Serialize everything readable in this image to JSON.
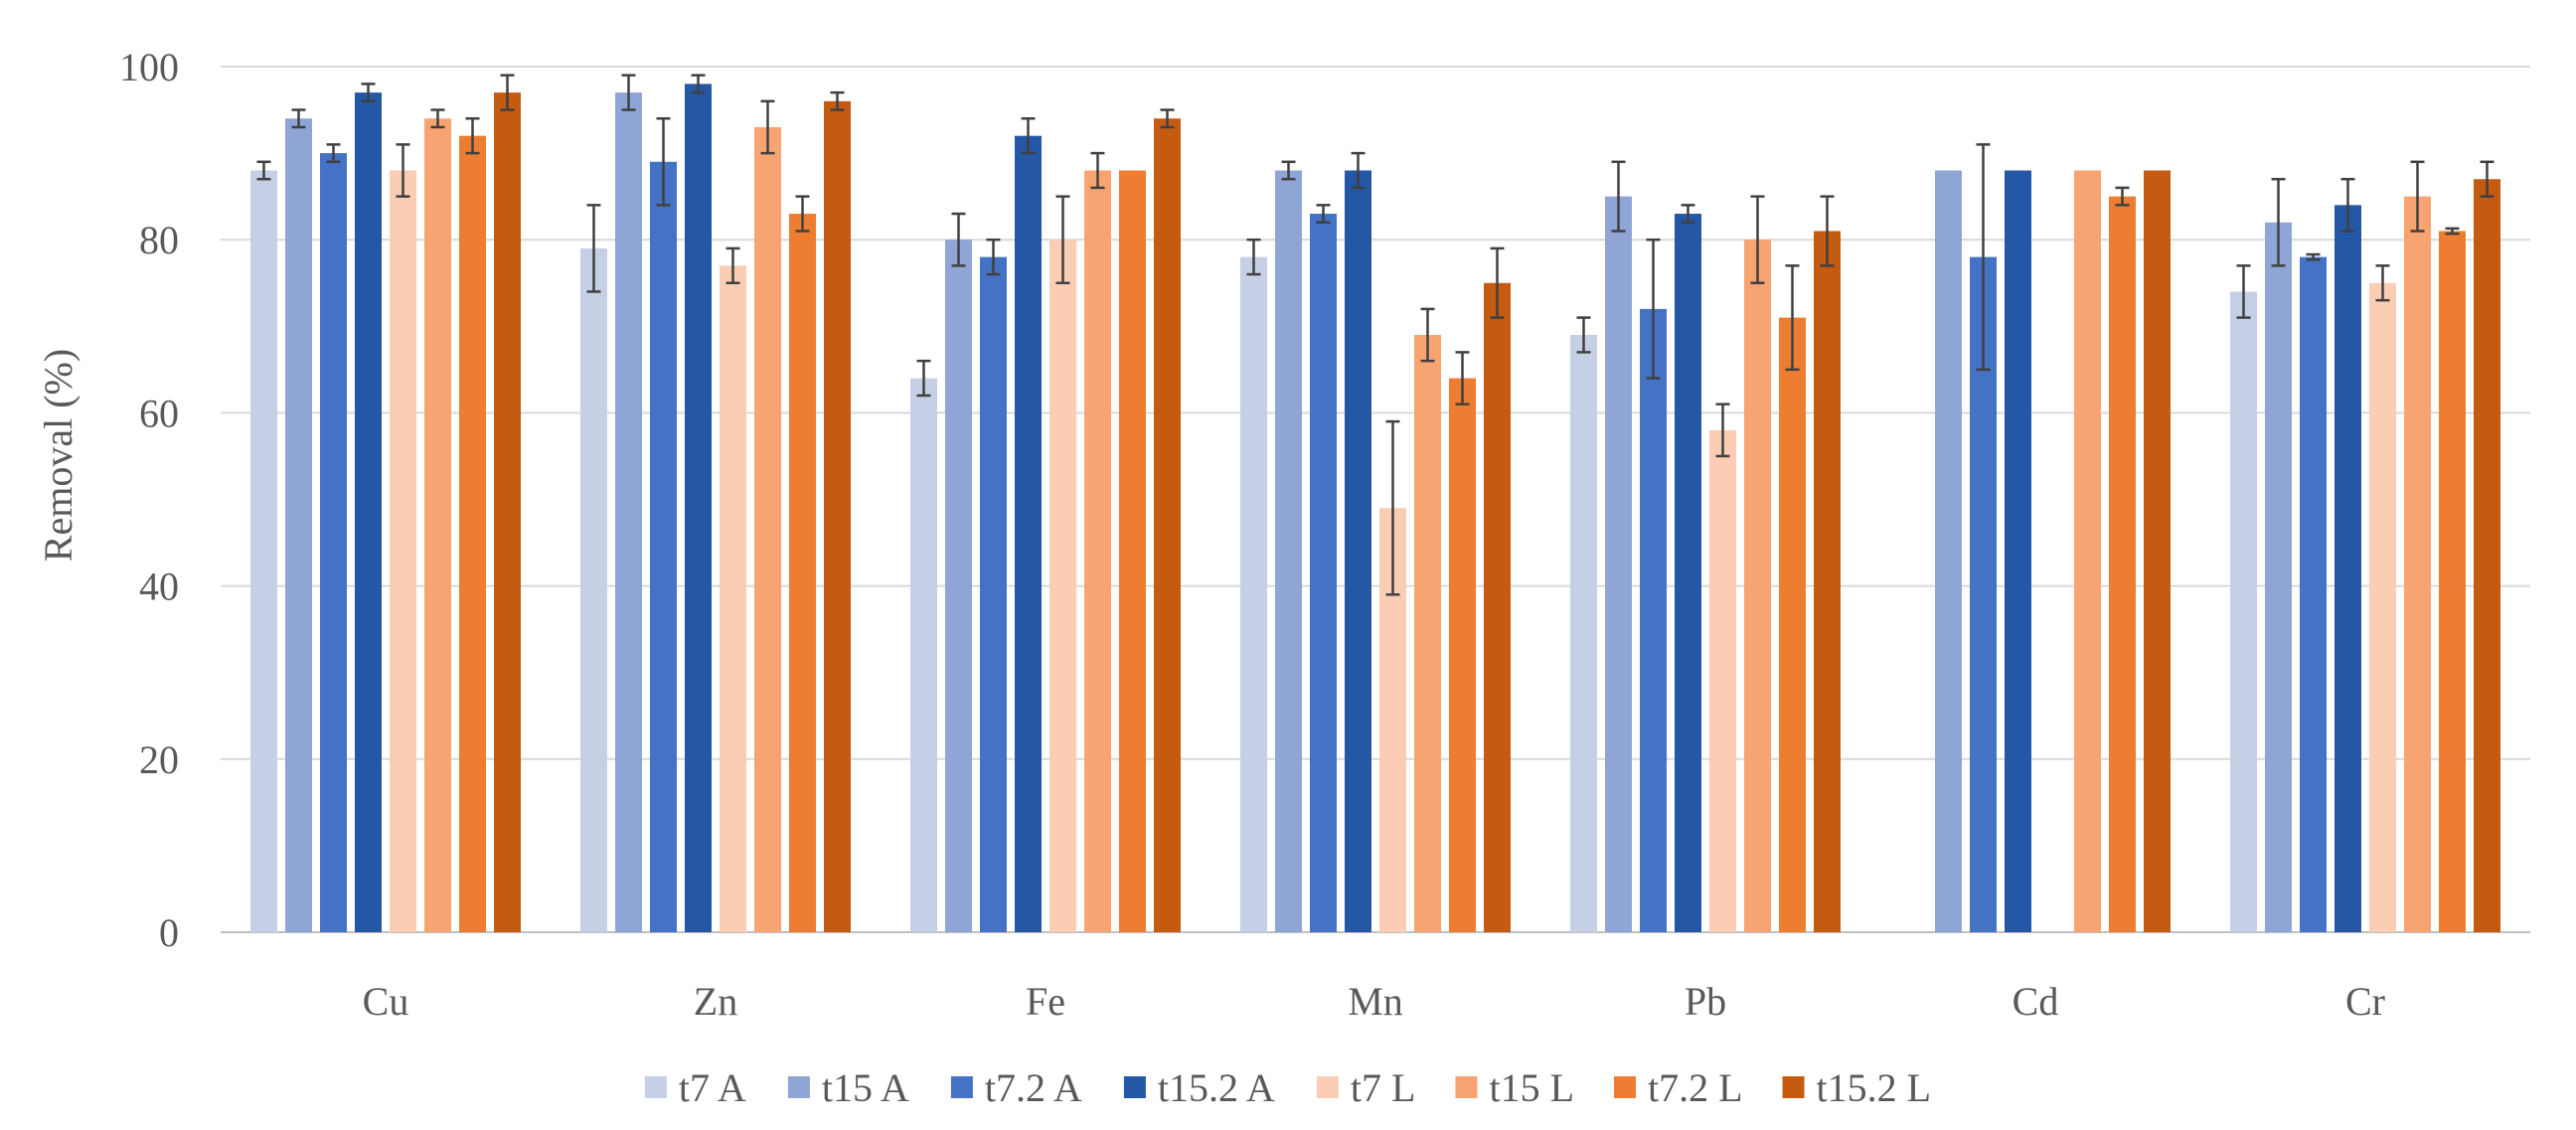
{
  "chart_data": {
    "type": "bar",
    "title": "",
    "xlabel": "",
    "ylabel": "Removal (%)",
    "ylim": [
      0,
      100
    ],
    "yticks": [
      0,
      20,
      40,
      60,
      80,
      100
    ],
    "grid": true,
    "legend_position": "bottom",
    "categories": [
      "Cu",
      "Zn",
      "Fe",
      "Mn",
      "Pb",
      "Cd",
      "Cr"
    ],
    "series": [
      {
        "name": "t7 A",
        "color": "#c5d0e6",
        "values": [
          88,
          79,
          64,
          78,
          69,
          null,
          74
        ],
        "errors": [
          1,
          5,
          2,
          2,
          2,
          null,
          3
        ]
      },
      {
        "name": "t15 A",
        "color": "#8fa5d6",
        "values": [
          94,
          97,
          80,
          88,
          85,
          88,
          82
        ],
        "errors": [
          1,
          2,
          3,
          1,
          4,
          0,
          5
        ]
      },
      {
        "name": "t7.2 A",
        "color": "#4472c4",
        "values": [
          90,
          89,
          78,
          83,
          72,
          78,
          78
        ],
        "errors": [
          1,
          5,
          2,
          1,
          8,
          13,
          0.3
        ]
      },
      {
        "name": "t15.2 A",
        "color": "#2458a6",
        "values": [
          97,
          98,
          92,
          88,
          83,
          88,
          84
        ],
        "errors": [
          1,
          1,
          2,
          2,
          1,
          0,
          3
        ]
      },
      {
        "name": "t7 L",
        "color": "#fbcdb5",
        "values": [
          88,
          77,
          80,
          49,
          58,
          null,
          75
        ],
        "errors": [
          3,
          2,
          5,
          10,
          3,
          null,
          2
        ]
      },
      {
        "name": "t15 L",
        "color": "#f8a472",
        "values": [
          94,
          93,
          88,
          69,
          80,
          88,
          85
        ],
        "errors": [
          1,
          3,
          2,
          3,
          5,
          0,
          4
        ]
      },
      {
        "name": "t7.2 L",
        "color": "#ed7d31",
        "values": [
          92,
          83,
          88,
          64,
          71,
          85,
          81
        ],
        "errors": [
          2,
          2,
          0,
          3,
          6,
          1,
          0.3
        ]
      },
      {
        "name": "t15.2 L",
        "color": "#c55a11",
        "values": [
          97,
          96,
          94,
          75,
          81,
          88,
          87
        ],
        "errors": [
          2,
          1,
          1,
          4,
          4,
          0,
          2
        ]
      }
    ]
  }
}
